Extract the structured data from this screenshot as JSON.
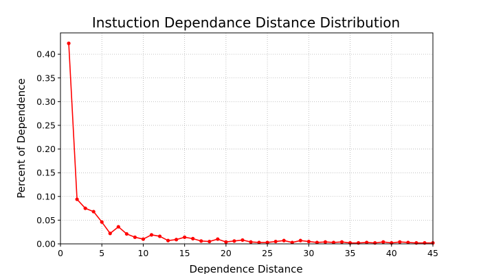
{
  "chart_data": {
    "type": "line",
    "title": "Instuction Dependance Distance Distribution",
    "xlabel": "Dependence Distance",
    "ylabel": "Percent of Dependence",
    "xlim": [
      0,
      45
    ],
    "ylim": [
      0,
      0.445
    ],
    "x_ticks": [
      0,
      5,
      10,
      15,
      20,
      25,
      30,
      35,
      40,
      45
    ],
    "y_ticks": [
      0.0,
      0.05,
      0.1,
      0.15,
      0.2,
      0.25,
      0.3,
      0.35,
      0.4
    ],
    "grid": true,
    "legend": "none",
    "series": [
      {
        "color": "#ff0000",
        "marker": "circle",
        "x": [
          1,
          2,
          3,
          4,
          5,
          6,
          7,
          8,
          9,
          10,
          11,
          12,
          13,
          14,
          15,
          16,
          17,
          18,
          19,
          20,
          21,
          22,
          23,
          24,
          25,
          26,
          27,
          28,
          29,
          30,
          31,
          32,
          33,
          34,
          35,
          36,
          37,
          38,
          39,
          40,
          41,
          42,
          43,
          44,
          45
        ],
        "y": [
          0.423,
          0.094,
          0.075,
          0.068,
          0.046,
          0.022,
          0.036,
          0.021,
          0.014,
          0.01,
          0.019,
          0.016,
          0.007,
          0.009,
          0.014,
          0.011,
          0.006,
          0.005,
          0.01,
          0.004,
          0.006,
          0.008,
          0.004,
          0.003,
          0.003,
          0.005,
          0.007,
          0.003,
          0.007,
          0.005,
          0.003,
          0.004,
          0.003,
          0.004,
          0.002,
          0.002,
          0.003,
          0.002,
          0.004,
          0.002,
          0.004,
          0.003,
          0.002,
          0.002,
          0.002
        ]
      }
    ]
  }
}
